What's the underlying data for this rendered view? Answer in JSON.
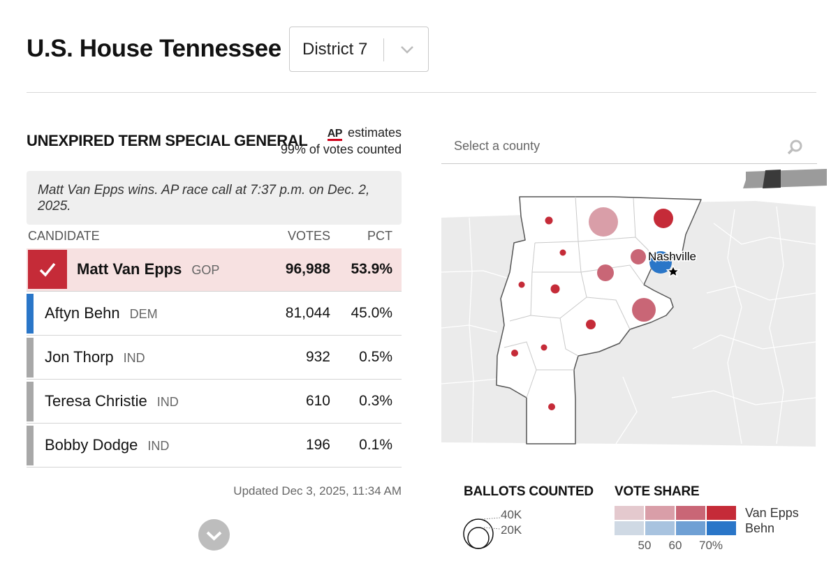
{
  "header": {
    "title": "U.S. House Tennessee",
    "district_selected": "District 7"
  },
  "race": {
    "title": "UNEXPIRED TERM SPECIAL GENERAL",
    "ap_logo": "AP",
    "ap_estimates_label": "estimates",
    "votes_counted": "99% of votes counted",
    "call_text": "Matt Van Epps wins. AP race call at 7:37 p.m. on Dec. 2, 2025."
  },
  "table": {
    "headers": {
      "candidate": "CANDIDATE",
      "votes": "VOTES",
      "pct": "PCT"
    },
    "rows": [
      {
        "name": "Matt Van Epps",
        "party": "GOP",
        "votes": "96,988",
        "pct": "53.9%",
        "winner": true,
        "color": "#c52b38"
      },
      {
        "name": "Aftyn Behn",
        "party": "DEM",
        "votes": "81,044",
        "pct": "45.0%",
        "winner": false,
        "color": "#2a76c8"
      },
      {
        "name": "Jon Thorp",
        "party": "IND",
        "votes": "932",
        "pct": "0.5%",
        "winner": false,
        "color": "#a8a8a8"
      },
      {
        "name": "Teresa Christie",
        "party": "IND",
        "votes": "610",
        "pct": "0.3%",
        "winner": false,
        "color": "#a8a8a8"
      },
      {
        "name": "Bobby Dodge",
        "party": "IND",
        "votes": "196",
        "pct": "0.1%",
        "winner": false,
        "color": "#a8a8a8"
      }
    ]
  },
  "updated_label": "Updated",
  "updated_time": "Dec 3, 2025, 11:34 AM",
  "map": {
    "search_placeholder": "Select a county",
    "city_label": "Nashville"
  },
  "legend": {
    "ballots_title": "BALLOTS COUNTED",
    "ballots_large": "40K",
    "ballots_small": "20K",
    "share_title": "VOTE SHARE",
    "rep_label": "Van Epps",
    "dem_label": "Behn",
    "rep_colors": [
      "#e4c9ce",
      "#d99ea8",
      "#c96676",
      "#c52b38"
    ],
    "dem_colors": [
      "#cfd9e4",
      "#a8c3df",
      "#6fa0d4",
      "#2a76c8"
    ],
    "ticks": [
      "50",
      "60",
      "70%"
    ]
  },
  "icons": {
    "select_chevron": "chevron-down-icon",
    "search": "search-icon",
    "expand": "chevron-down-icon",
    "winner_check": "check-icon"
  }
}
